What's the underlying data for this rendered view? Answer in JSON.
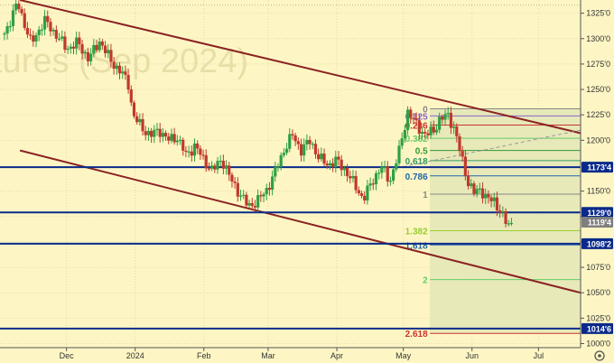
{
  "watermark": {
    "line1": "",
    "line2": "tures (Sep 2024)"
  },
  "colors": {
    "background": "#fdf6c4",
    "candle_up": "#2ea043",
    "candle_down": "#c0392b",
    "channel": "#8b2323",
    "horizontal_level": "#0a2a8a",
    "tag_bg": "#0a2a8a",
    "tag_text": "#ffffff",
    "price_tag_bg": "#7f7f7f",
    "fib_shade": "#e4e8b8",
    "fib_line_green": "#66cc66",
    "fib_line_red": "#cc3333",
    "fib_line_grey": "#aaaaaa",
    "fib_line_blue": "#2266cc",
    "fib_line_purple": "#8866cc"
  },
  "chart_data": {
    "type": "candlestick",
    "title": "",
    "xlabel": "",
    "ylabel": "",
    "ylim": [
      996,
      1338
    ],
    "grid": true,
    "x_tick_labels": [
      {
        "label": "Dec",
        "day": 30
      },
      {
        "label": "2024",
        "day": 61
      },
      {
        "label": "Feb",
        "day": 92
      },
      {
        "label": "Mar",
        "day": 121
      },
      {
        "label": "Apr",
        "day": 152
      },
      {
        "label": "May",
        "day": 182
      },
      {
        "label": "Jun",
        "day": 213
      },
      {
        "label": "Jul",
        "day": 243
      }
    ],
    "y_tick_labels": [
      "1325'0",
      "1300'0",
      "1275'0",
      "1250'0",
      "1225'0",
      "1200'0",
      "1150'0",
      "1125'0",
      "1100'0",
      "1075'0",
      "1050'0",
      "1025'0",
      "1000'0"
    ],
    "y_tick_values": [
      1325,
      1300,
      1275,
      1250,
      1225,
      1200,
      1150,
      1125,
      1100,
      1075,
      1050,
      1025,
      1000
    ],
    "x_domain_days": [
      0,
      262
    ],
    "candles_days": [
      2,
      231
    ],
    "price_path": [
      [
        2,
        1305
      ],
      [
        8,
        1335
      ],
      [
        14,
        1295
      ],
      [
        20,
        1318
      ],
      [
        26,
        1302
      ],
      [
        30,
        1290
      ],
      [
        35,
        1296
      ],
      [
        40,
        1280
      ],
      [
        45,
        1298
      ],
      [
        50,
        1278
      ],
      [
        55,
        1266
      ],
      [
        58,
        1255
      ],
      [
        60,
        1225
      ],
      [
        64,
        1212
      ],
      [
        68,
        1205
      ],
      [
        72,
        1210
      ],
      [
        76,
        1200
      ],
      [
        80,
        1203
      ],
      [
        84,
        1185
      ],
      [
        88,
        1195
      ],
      [
        92,
        1180
      ],
      [
        96,
        1170
      ],
      [
        100,
        1182
      ],
      [
        104,
        1162
      ],
      [
        108,
        1148
      ],
      [
        112,
        1135
      ],
      [
        116,
        1140
      ],
      [
        120,
        1150
      ],
      [
        124,
        1168
      ],
      [
        128,
        1190
      ],
      [
        132,
        1205
      ],
      [
        136,
        1190
      ],
      [
        140,
        1200
      ],
      [
        144,
        1182
      ],
      [
        148,
        1176
      ],
      [
        152,
        1180
      ],
      [
        156,
        1170
      ],
      [
        160,
        1156
      ],
      [
        164,
        1142
      ],
      [
        168,
        1160
      ],
      [
        172,
        1174
      ],
      [
        176,
        1160
      ],
      [
        180,
        1188
      ],
      [
        184,
        1228
      ],
      [
        188,
        1215
      ],
      [
        192,
        1205
      ],
      [
        196,
        1210
      ],
      [
        198,
        1220
      ],
      [
        200,
        1222
      ],
      [
        202,
        1225
      ],
      [
        205,
        1212
      ],
      [
        208,
        1185
      ],
      [
        211,
        1160
      ],
      [
        214,
        1148
      ],
      [
        217,
        1152
      ],
      [
        220,
        1142
      ],
      [
        223,
        1140
      ],
      [
        226,
        1130
      ],
      [
        229,
        1115
      ],
      [
        231,
        1119.25
      ]
    ],
    "channel_lines": [
      {
        "name": "upper",
        "from": [
          9,
          1338
        ],
        "to": [
          262,
          1207
        ]
      },
      {
        "name": "lower",
        "from": [
          9,
          1190
        ],
        "to": [
          262,
          1050
        ]
      }
    ],
    "dashed_line": {
      "from": [
        182,
        1174
      ],
      "to": [
        262,
        1210
      ]
    },
    "horizontal_levels": [
      {
        "price": 1173.5,
        "label": "1173'4"
      },
      {
        "price": 1129.0,
        "label": "1129'0"
      },
      {
        "price": 1098.25,
        "label": "1098'2"
      },
      {
        "price": 1014.75,
        "label": "1014'6"
      }
    ],
    "current_price": {
      "price": 1119.5,
      "label": "1119'4"
    },
    "fibonacci": {
      "x_start_day": 194,
      "x_label_day": 193,
      "levels": [
        {
          "ratio": "0",
          "price": 1231,
          "color": "#888888"
        },
        {
          "ratio": "0.125",
          "price": 1224,
          "color": "#8866cc"
        },
        {
          "ratio": "0.236",
          "price": 1215,
          "color": "#cc3333"
        },
        {
          "ratio": "0.382",
          "price": 1202,
          "color": "#66cc66"
        },
        {
          "ratio": "0.5",
          "price": 1190,
          "color": "#339933"
        },
        {
          "ratio": "0.618",
          "price": 1180,
          "color": "#339966"
        },
        {
          "ratio": "0.786",
          "price": 1165,
          "color": "#2266aa"
        },
        {
          "ratio": "1",
          "price": 1147,
          "color": "#888888"
        },
        {
          "ratio": "1.382",
          "price": 1111,
          "color": "#99cc33"
        },
        {
          "ratio": "1.618",
          "price": 1097,
          "color": "#2266aa"
        },
        {
          "ratio": "2",
          "price": 1063,
          "color": "#66cc66"
        },
        {
          "ratio": "2.618",
          "price": 1010,
          "color": "#cc3333"
        }
      ]
    }
  }
}
